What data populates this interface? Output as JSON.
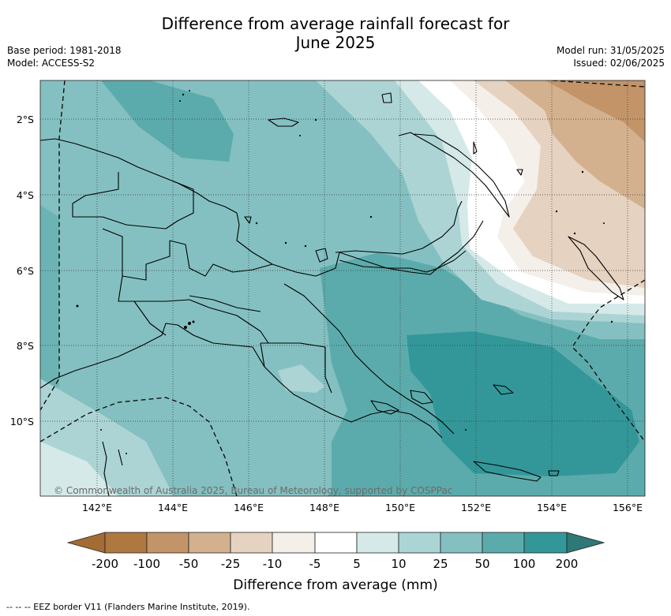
{
  "header": {
    "title_line1": "Difference from average rainfall forecast for",
    "title_line2": "June 2025",
    "base_period": "Base period: 1981-2018",
    "model": "Model: ACCESS-S2",
    "model_run": "Model run: 31/05/2025",
    "issued": "Issued: 02/06/2025"
  },
  "map": {
    "lat_labels": [
      "2°S",
      "4°S",
      "6°S",
      "8°S",
      "10°S"
    ],
    "lon_labels": [
      "142°E",
      "144°E",
      "146°E",
      "148°E",
      "150°E",
      "152°E",
      "154°E",
      "156°E"
    ],
    "copyright": "© Commonwealth of Australia 2025, Bureau of Meteorology, supported by COSPPac"
  },
  "colorbar": {
    "tick_labels": [
      "-200",
      "-100",
      "-50",
      "-25",
      "-10",
      "-5",
      "5",
      "10",
      "25",
      "50",
      "100",
      "200"
    ],
    "label": "Difference from average (mm)",
    "colors": [
      "#a56b35",
      "#ae7840",
      "#c29468",
      "#d3b18f",
      "#e6d2c0",
      "#f4efe9",
      "#ffffff",
      "#d5e9e9",
      "#acd4d5",
      "#84c0c1",
      "#5cabac",
      "#339799",
      "#2e7877"
    ]
  },
  "footnote": "--  --  -- EEZ border V11 (Flanders Marine Institute, 2019)."
}
